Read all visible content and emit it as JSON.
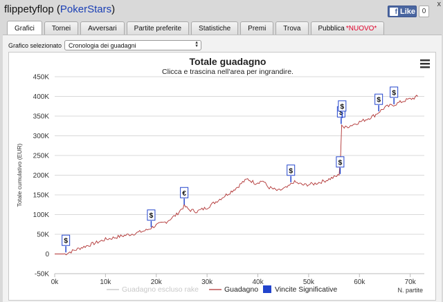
{
  "window": {
    "player": "flippetyflop",
    "site": "PokerStars",
    "close_glyph": "x"
  },
  "facebook": {
    "like_label": "Like",
    "count": "0"
  },
  "tabs": [
    {
      "label": "Grafici",
      "active": true
    },
    {
      "label": "Tornei"
    },
    {
      "label": "Avversari"
    },
    {
      "label": "Partite preferite"
    },
    {
      "label": "Statistiche"
    },
    {
      "label": "Premi"
    },
    {
      "label": "Trova"
    },
    {
      "label": "Pubblica",
      "badge": "*NUOVO*"
    }
  ],
  "selector": {
    "label": "Grafico selezionato",
    "value": "Cronologia dei guadagni"
  },
  "chart_data": {
    "type": "line",
    "title": "Totale guadagno",
    "subtitle": "Clicca e trascina nell'area per ingrandire.",
    "ylabel": "Totale cumulativo (EUR)",
    "xlabel": "N. partite",
    "xlim": [
      0,
      72500
    ],
    "ylim": [
      -50000,
      450000
    ],
    "x_ticks": [
      0,
      10000,
      20000,
      30000,
      40000,
      50000,
      60000,
      70000
    ],
    "x_tick_labels": [
      "0k",
      "10k",
      "20k",
      "30k",
      "40k",
      "50k",
      "60k",
      "70k"
    ],
    "y_ticks": [
      -50000,
      0,
      50000,
      100000,
      150000,
      200000,
      250000,
      300000,
      350000,
      400000,
      450000
    ],
    "y_tick_labels": [
      "-50K",
      "0",
      "50K",
      "100K",
      "150K",
      "200K",
      "250K",
      "300K",
      "350K",
      "400K",
      "450K"
    ],
    "series": [
      {
        "name": "Guadagno",
        "color": "#b03030",
        "points": [
          [
            0,
            0
          ],
          [
            2000,
            0
          ],
          [
            3000,
            5000
          ],
          [
            5000,
            15000
          ],
          [
            8000,
            28000
          ],
          [
            10000,
            37000
          ],
          [
            13000,
            45000
          ],
          [
            16000,
            53000
          ],
          [
            18000,
            60000
          ],
          [
            20000,
            73000
          ],
          [
            22000,
            82000
          ],
          [
            24000,
            100000
          ],
          [
            25500,
            122000
          ],
          [
            26500,
            112000
          ],
          [
            28000,
            108000
          ],
          [
            30000,
            118000
          ],
          [
            32000,
            135000
          ],
          [
            34000,
            152000
          ],
          [
            36000,
            170000
          ],
          [
            37000,
            182000
          ],
          [
            38000,
            190000
          ],
          [
            39500,
            180000
          ],
          [
            41000,
            186000
          ],
          [
            42000,
            170000
          ],
          [
            44000,
            160000
          ],
          [
            46000,
            170000
          ],
          [
            47000,
            183000
          ],
          [
            49000,
            175000
          ],
          [
            51000,
            178000
          ],
          [
            53000,
            185000
          ],
          [
            55000,
            195000
          ],
          [
            56000,
            200000
          ],
          [
            56300,
            250000
          ],
          [
            56500,
            330000
          ],
          [
            57000,
            320000
          ],
          [
            59000,
            330000
          ],
          [
            61000,
            340000
          ],
          [
            63000,
            352000
          ],
          [
            65000,
            372000
          ],
          [
            67000,
            380000
          ],
          [
            69000,
            390000
          ],
          [
            70500,
            395000
          ],
          [
            71500,
            400000
          ]
        ]
      },
      {
        "name": "Guadagno escluso rake",
        "color": "#cccccc",
        "hidden": true
      }
    ],
    "significant_wins": {
      "name": "Vincite Significative",
      "color": "#2244cc",
      "markers": [
        {
          "x": 2200,
          "y": 4000,
          "symbol": "$"
        },
        {
          "x": 19000,
          "y": 68000,
          "symbol": "$"
        },
        {
          "x": 25500,
          "y": 125000,
          "symbol": "€"
        },
        {
          "x": 46500,
          "y": 182000,
          "symbol": "$"
        },
        {
          "x": 56200,
          "y": 203000,
          "symbol": "$"
        },
        {
          "x": 56400,
          "y": 330000,
          "symbol": "$"
        },
        {
          "x": 56600,
          "y": 345000,
          "symbol": "$"
        },
        {
          "x": 63800,
          "y": 362000,
          "symbol": "$"
        },
        {
          "x": 66800,
          "y": 380000,
          "symbol": "$"
        }
      ]
    },
    "legend": {
      "placement": "bottom-center"
    },
    "grid": {
      "horizontal": true,
      "vertical": false
    }
  }
}
